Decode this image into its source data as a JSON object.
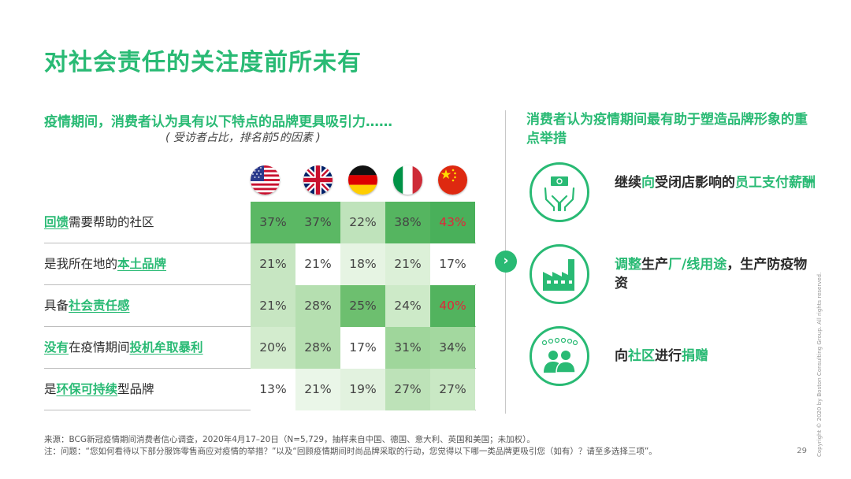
{
  "title": "对社会责任的关注度前所未有",
  "left": {
    "heading": "疫情期间，消费者认为具有以下特点的品牌更具吸引力……",
    "subheading": "( 受访者占比，排名前5的因素 )",
    "countries": [
      "US",
      "UK",
      "Germany",
      "Italy",
      "China"
    ],
    "rows": [
      {
        "pre": "",
        "hl": "回馈",
        "post": "需要帮助的社区",
        "hl2": "",
        "post2": "",
        "cells": [
          {
            "v": "37%",
            "bg": "#5bb864",
            "red": false
          },
          {
            "v": "37%",
            "bg": "#5bb864",
            "red": false
          },
          {
            "v": "22%",
            "bg": "#bfe3bb",
            "red": false
          },
          {
            "v": "38%",
            "bg": "#55b560",
            "red": false
          },
          {
            "v": "43%",
            "bg": "#49b05a",
            "red": true
          }
        ]
      },
      {
        "pre": "是我所在地的",
        "hl": "本土品牌",
        "post": "",
        "hl2": "",
        "post2": "",
        "cells": [
          {
            "v": "21%",
            "bg": "#c7e6c2",
            "red": false
          },
          {
            "v": "21%",
            "bg": "#ffffff",
            "red": false
          },
          {
            "v": "18%",
            "bg": "#e6f4e3",
            "red": false
          },
          {
            "v": "21%",
            "bg": "#dcf0d8",
            "red": false
          },
          {
            "v": "17%",
            "bg": "#ffffff",
            "red": false
          }
        ]
      },
      {
        "pre": "具备",
        "hl": "社会责任感",
        "post": "",
        "hl2": "",
        "post2": "",
        "cells": [
          {
            "v": "21%",
            "bg": "#c7e6c2",
            "red": false
          },
          {
            "v": "28%",
            "bg": "#b5dfb0",
            "red": false
          },
          {
            "v": "25%",
            "bg": "#6dbf6f",
            "red": false
          },
          {
            "v": "24%",
            "bg": "#cdeac8",
            "red": false
          },
          {
            "v": "40%",
            "bg": "#52b35e",
            "red": true
          }
        ]
      },
      {
        "pre": "",
        "hl": "没有",
        "post": "在疫情期间",
        "hl2": "投机牟取暴利",
        "post2": "",
        "cells": [
          {
            "v": "20%",
            "bg": "#d3ecce",
            "red": false
          },
          {
            "v": "28%",
            "bg": "#b5dfb0",
            "red": false
          },
          {
            "v": "17%",
            "bg": "#ffffff",
            "red": false
          },
          {
            "v": "31%",
            "bg": "#9fd69b",
            "red": false
          },
          {
            "v": "34%",
            "bg": "#a3d89f",
            "red": false
          }
        ]
      },
      {
        "pre": "是",
        "hl": "环保可持续",
        "post": "型品牌",
        "hl2": "",
        "post2": "",
        "cells": [
          {
            "v": "13%",
            "bg": "#ffffff",
            "red": false
          },
          {
            "v": "21%",
            "bg": "#eaf6e8",
            "red": false
          },
          {
            "v": "19%",
            "bg": "#e2f2df",
            "red": false
          },
          {
            "v": "27%",
            "bg": "#bde2b8",
            "red": false
          },
          {
            "v": "27%",
            "bg": "#c9e8c4",
            "red": false
          }
        ]
      }
    ]
  },
  "right": {
    "heading": "消费者认为疫情期间最有助于塑造品牌形象的重点举措",
    "actions": [
      {
        "icon": "money-hands-icon",
        "parts": [
          {
            "t": "继续",
            "g": false
          },
          {
            "t": "向",
            "g": true
          },
          {
            "t": "受闭店影响的",
            "g": false
          },
          {
            "t": "员工支付薪酬",
            "g": true
          }
        ]
      },
      {
        "icon": "factory-icon",
        "parts": [
          {
            "t": "调整",
            "g": true
          },
          {
            "t": "生产",
            "g": false
          },
          {
            "t": "厂/线用途",
            "g": true
          },
          {
            "t": "，生产防疫物资",
            "g": false
          }
        ]
      },
      {
        "icon": "community-icon",
        "parts": [
          {
            "t": "向",
            "g": false
          },
          {
            "t": "社区",
            "g": true
          },
          {
            "t": "进行",
            "g": false
          },
          {
            "t": "捐赠",
            "g": true
          }
        ]
      }
    ]
  },
  "footer": {
    "source": "来源：BCG新冠疫情期间消费者信心调查，2020年4月17–20日（N=5,729，抽样来自中国、德国、意大利、英国和美国；未加权）。",
    "note": "注：问题：“您如何看待以下部分服饰零售商应对疫情的举措？”以及“回顾疫情期间时尚品牌采取的行动，您觉得以下哪一类品牌更吸引您（如有）？请至多选择三项”。"
  },
  "page_number": "29",
  "copyright": "Copyright © 2020 by Boston Consulting Group. All rights reserved.",
  "colors": {
    "accent": "#29ba74",
    "red": "#e0263a"
  }
}
